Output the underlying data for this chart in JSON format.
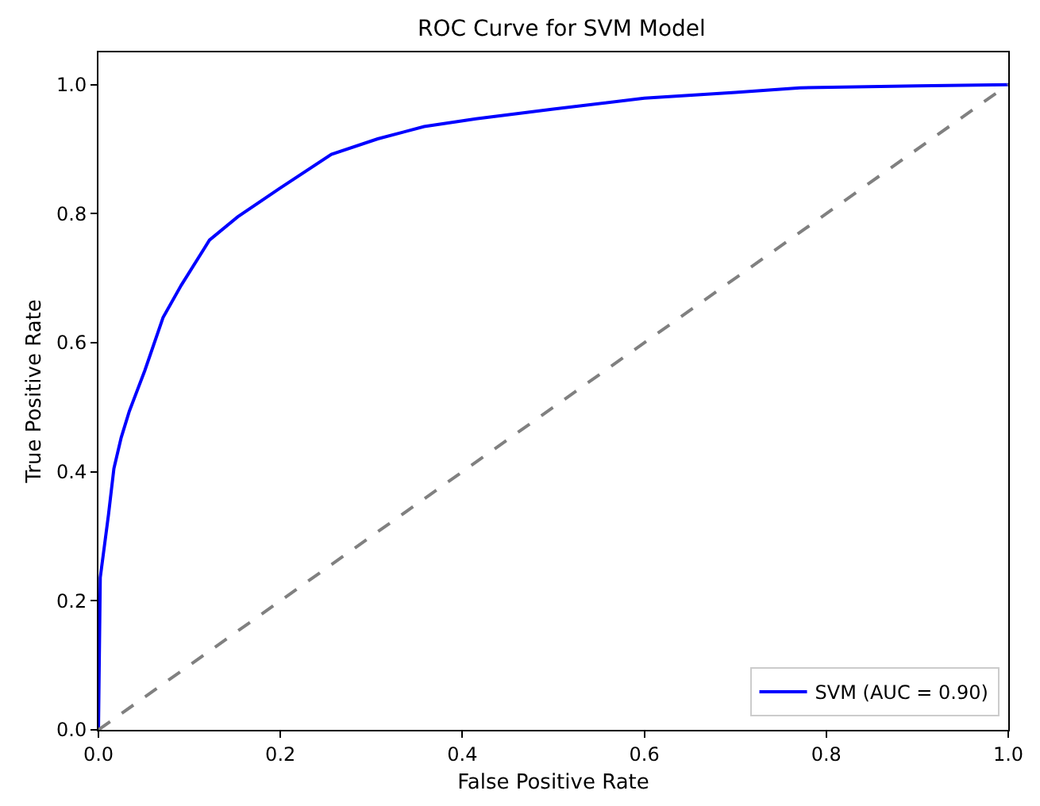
{
  "chart_data": {
    "type": "line",
    "title": "ROC Curve for SVM Model",
    "xlabel": "False Positive Rate",
    "ylabel": "True Positive Rate",
    "xlim": [
      0,
      1
    ],
    "ylim": [
      0,
      1.05
    ],
    "xticks": [
      {
        "value": 0,
        "label": "0.0"
      },
      0.2,
      0.4,
      0.6,
      0.8,
      {
        "value": 1,
        "label": "1.0"
      }
    ],
    "yticks": [
      {
        "value": 0,
        "label": "0.0"
      },
      0.2,
      0.4,
      0.6,
      0.8,
      {
        "value": 1,
        "label": "1.0"
      }
    ],
    "grid": false,
    "legend": "bottom right",
    "marker": "none",
    "series": [
      {
        "name": "SVM (AUC = 0.90)",
        "color": "#0000ff",
        "line_style": "solid",
        "x": [
          0,
          0.002,
          0.011,
          0.017,
          0.025,
          0.034,
          0.051,
          0.071,
          0.091,
          0.122,
          0.153,
          0.199,
          0.256,
          0.307,
          0.358,
          0.415,
          0.5,
          0.6,
          0.7,
          0.771,
          0.9,
          1
        ],
        "values": [
          0,
          0.236,
          0.333,
          0.405,
          0.453,
          0.494,
          0.557,
          0.639,
          0.689,
          0.759,
          0.795,
          0.839,
          0.892,
          0.916,
          0.935,
          0.947,
          0.962,
          0.979,
          0.988,
          0.995,
          0.998,
          1
        ]
      },
      {
        "color": "#808080",
        "line_style": "dashed",
        "x": [
          0,
          1
        ],
        "values": [
          0,
          1
        ]
      }
    ]
  }
}
